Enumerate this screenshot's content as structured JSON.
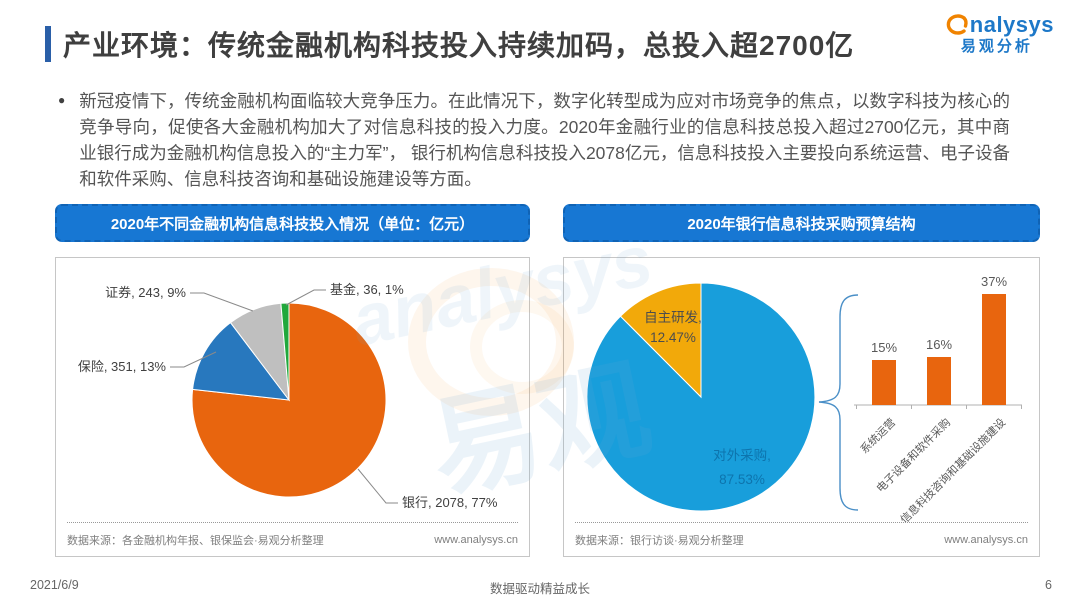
{
  "page": {
    "title": "产业环境：传统金融机构科技投入持续加码，总投入超2700亿",
    "logo": {
      "name": "analysys",
      "name_cn": "易观分析"
    },
    "bullet_text": "新冠疫情下，传统金融机构面临较大竞争压力。在此情况下，数字化转型成为应对市场竞争的焦点，以数字科技为核心的竞争导向，促使各大金融机构加大了对信息科技的投入力度。2020年金融行业的信息科技总投入超过2700亿元，其中商业银行成为金融机构信息投入的“主力军”， 银行机构信息科技投入2078亿元，信息科技投入主要投向系统运营、电子设备和软件采购、信息科技咨询和基础设施建设等方面。",
    "watermark_en": "analysys",
    "watermark_cn": "易观",
    "footer": {
      "date": "2021/6/9",
      "slogan": "数据驱动精益成长",
      "page_number": "6"
    }
  },
  "theme": {
    "header_blue": "#1777d3",
    "accent_bar_blue": "#2a5fa8",
    "logo_blue": "#1d78c8",
    "logo_orange": "#f08300",
    "body_text": "#555555",
    "source_text": "#7f7f7f"
  },
  "left_panel": {
    "header": "2020年不同金融机构信息科技投入情况（单位：亿元）",
    "source": "数据来源：各金融机构年报、银保监会·易观分析整理",
    "website": "www.analysys.cn"
  },
  "right_panel": {
    "header": "2020年银行信息科技采购预算结构",
    "source": "数据来源：银行访谈·易观分析整理",
    "website": "www.analysys.cn"
  },
  "chart_data": [
    {
      "id": "institutions-pie",
      "type": "pie",
      "title": "2020年不同金融机构信息科技投入情况（单位：亿元）",
      "unit": "亿元",
      "labels": [
        "银行",
        "保险",
        "证券",
        "基金"
      ],
      "values": [
        2078,
        351,
        243,
        36
      ],
      "percents": [
        "77%",
        "13%",
        "9%",
        "1%"
      ],
      "colors": [
        "#E8650E",
        "#2878BE",
        "#BFBFBF",
        "#21A83C"
      ],
      "label_template": "{label}, {value}, {percent}",
      "start_angle_deg": 0,
      "direction": "clockwise"
    },
    {
      "id": "procurement-pie",
      "type": "pie",
      "title": "2020年银行信息科技采购预算结构",
      "labels": [
        "对外采购",
        "自主研发"
      ],
      "values": [
        87.53,
        12.47
      ],
      "percents": [
        "87.53%",
        "12.47%"
      ],
      "colors": [
        "#189EDB",
        "#F2A90A"
      ],
      "start_angle_deg": 0,
      "direction": "clockwise"
    },
    {
      "id": "procurement-bars",
      "type": "bar",
      "categories": [
        "系统运营",
        "电子设备和软件采购",
        "信息科技咨询和基础设施建设"
      ],
      "values": [
        15,
        16,
        37
      ],
      "value_labels": [
        "15%",
        "16%",
        "37%"
      ],
      "bar_color": "#E8650E",
      "ylim": [
        0,
        40
      ],
      "grid": false,
      "xlabel": "",
      "ylabel": ""
    }
  ]
}
